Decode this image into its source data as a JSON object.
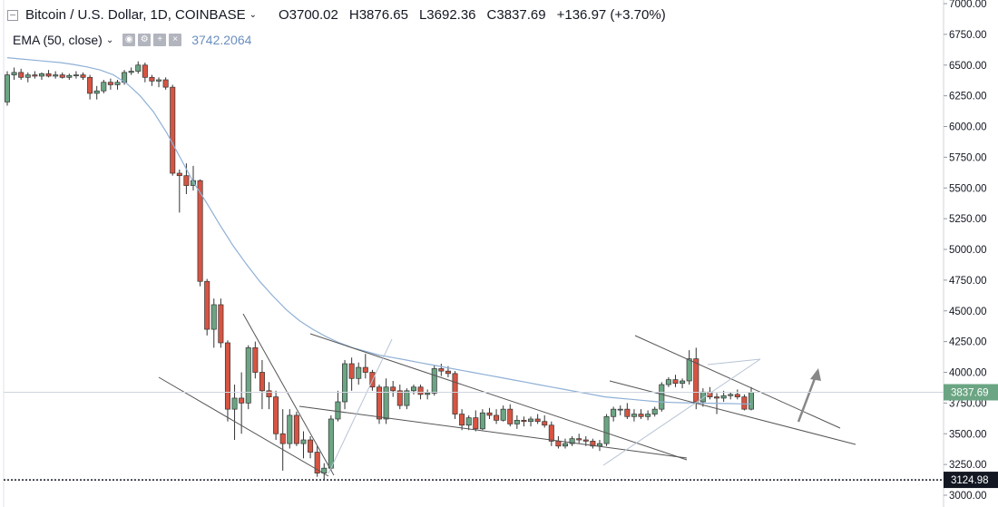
{
  "header": {
    "symbol": "Bitcoin / U.S. Dollar, 1D, COINBASE",
    "open_key": "O",
    "open": "3700.02",
    "high_key": "H",
    "high": "3876.65",
    "low_key": "L",
    "low": "3692.36",
    "close_key": "C",
    "close": "3837.69",
    "change": "+136.97 (+3.70%)"
  },
  "indicator": {
    "name": "EMA (50, close)",
    "value": "3742.2064",
    "icons": [
      "eye-icon",
      "settings-icon",
      "plus-icon",
      "close-icon"
    ]
  },
  "colors": {
    "up": "#6ba583",
    "down": "#d75442",
    "ema": "#8fb0d6",
    "trendline": "#555555",
    "arrow": "#888888",
    "price_label": "#6ba583"
  },
  "chart_data": {
    "type": "candlestick",
    "ylim": [
      3000,
      7000
    ],
    "y_ticks": [
      "7000.00",
      "6750.00",
      "6500.00",
      "6250.00",
      "6000.00",
      "5750.00",
      "5500.00",
      "5250.00",
      "5000.00",
      "4750.00",
      "4500.00",
      "4250.00",
      "4000.00",
      "3750.00",
      "3500.00",
      "3250.00",
      "3000.00"
    ],
    "last_price_label": "3837.69",
    "support_level_label": "3124.98",
    "support_level": 3124.98,
    "last_price": 3837.69,
    "candles": [
      [
        6200,
        6450,
        6170,
        6420
      ],
      [
        6420,
        6480,
        6380,
        6440
      ],
      [
        6440,
        6470,
        6380,
        6400
      ],
      [
        6400,
        6440,
        6360,
        6420
      ],
      [
        6420,
        6450,
        6390,
        6410
      ],
      [
        6410,
        6440,
        6380,
        6430
      ],
      [
        6430,
        6460,
        6400,
        6410
      ],
      [
        6410,
        6450,
        6390,
        6420
      ],
      [
        6420,
        6440,
        6390,
        6400
      ],
      [
        6400,
        6430,
        6380,
        6415
      ],
      [
        6415,
        6450,
        6390,
        6420
      ],
      [
        6420,
        6440,
        6380,
        6400
      ],
      [
        6400,
        6420,
        6220,
        6270
      ],
      [
        6270,
        6330,
        6220,
        6290
      ],
      [
        6290,
        6380,
        6270,
        6360
      ],
      [
        6360,
        6390,
        6300,
        6340
      ],
      [
        6340,
        6380,
        6300,
        6360
      ],
      [
        6360,
        6460,
        6340,
        6440
      ],
      [
        6440,
        6480,
        6420,
        6450
      ],
      [
        6450,
        6530,
        6430,
        6500
      ],
      [
        6500,
        6520,
        6360,
        6400
      ],
      [
        6400,
        6420,
        6330,
        6370
      ],
      [
        6370,
        6400,
        6320,
        6380
      ],
      [
        6380,
        6400,
        6300,
        6320
      ],
      [
        6320,
        6340,
        5600,
        5620
      ],
      [
        5620,
        5650,
        5300,
        5600
      ],
      [
        5600,
        5700,
        5450,
        5520
      ],
      [
        5520,
        5680,
        5480,
        5560
      ],
      [
        5560,
        5570,
        4700,
        4740
      ],
      [
        4740,
        4760,
        4300,
        4350
      ],
      [
        4350,
        4600,
        4200,
        4550
      ],
      [
        4550,
        4600,
        4200,
        4240
      ],
      [
        4240,
        4260,
        3600,
        3700
      ],
      [
        3700,
        3900,
        3450,
        3790
      ],
      [
        3790,
        4000,
        3500,
        3750
      ],
      [
        3750,
        4220,
        3700,
        4200
      ],
      [
        4200,
        4250,
        3950,
        4000
      ],
      [
        4000,
        4100,
        3700,
        3850
      ],
      [
        3850,
        3920,
        3700,
        3800
      ],
      [
        3800,
        3850,
        3450,
        3500
      ],
      [
        3500,
        3700,
        3200,
        3420
      ],
      [
        3420,
        3700,
        3380,
        3650
      ],
      [
        3650,
        3680,
        3400,
        3420
      ],
      [
        3420,
        3520,
        3300,
        3450
      ],
      [
        3450,
        3480,
        3300,
        3350
      ],
      [
        3350,
        3400,
        3150,
        3180
      ],
      [
        3180,
        3260,
        3130,
        3220
      ],
      [
        3220,
        3650,
        3200,
        3620
      ],
      [
        3620,
        3850,
        3600,
        3760
      ],
      [
        3760,
        4100,
        3700,
        4070
      ],
      [
        4070,
        4120,
        3850,
        3950
      ],
      [
        3950,
        4080,
        3900,
        4040
      ],
      [
        4040,
        4150,
        3950,
        4000
      ],
      [
        4000,
        4020,
        3850,
        3880
      ],
      [
        3880,
        3900,
        3580,
        3620
      ],
      [
        3620,
        3950,
        3580,
        3880
      ],
      [
        3880,
        3930,
        3800,
        3850
      ],
      [
        3850,
        3900,
        3700,
        3730
      ],
      [
        3730,
        3870,
        3700,
        3850
      ],
      [
        3850,
        3900,
        3820,
        3880
      ],
      [
        3880,
        3900,
        3780,
        3820
      ],
      [
        3820,
        3860,
        3780,
        3830
      ],
      [
        3830,
        4060,
        3810,
        4030
      ],
      [
        4030,
        4070,
        3970,
        4010
      ],
      [
        4010,
        4050,
        3960,
        3990
      ],
      [
        3990,
        4010,
        3620,
        3660
      ],
      [
        3660,
        3700,
        3530,
        3570
      ],
      [
        3570,
        3650,
        3530,
        3630
      ],
      [
        3630,
        3690,
        3520,
        3540
      ],
      [
        3540,
        3700,
        3530,
        3670
      ],
      [
        3670,
        3710,
        3620,
        3650
      ],
      [
        3650,
        3700,
        3580,
        3610
      ],
      [
        3610,
        3730,
        3600,
        3700
      ],
      [
        3700,
        3740,
        3560,
        3580
      ],
      [
        3580,
        3650,
        3540,
        3610
      ],
      [
        3610,
        3640,
        3560,
        3600
      ],
      [
        3600,
        3640,
        3560,
        3620
      ],
      [
        3620,
        3660,
        3580,
        3600
      ],
      [
        3600,
        3650,
        3550,
        3570
      ],
      [
        3570,
        3600,
        3400,
        3440
      ],
      [
        3440,
        3480,
        3380,
        3400
      ],
      [
        3400,
        3460,
        3380,
        3420
      ],
      [
        3420,
        3480,
        3400,
        3460
      ],
      [
        3460,
        3500,
        3420,
        3450
      ],
      [
        3450,
        3480,
        3400,
        3440
      ],
      [
        3440,
        3460,
        3380,
        3400
      ],
      [
        3400,
        3450,
        3360,
        3420
      ],
      [
        3420,
        3660,
        3400,
        3640
      ],
      [
        3640,
        3720,
        3600,
        3700
      ],
      [
        3700,
        3730,
        3650,
        3700
      ],
      [
        3700,
        3750,
        3620,
        3640
      ],
      [
        3640,
        3700,
        3600,
        3660
      ],
      [
        3660,
        3700,
        3620,
        3640
      ],
      [
        3640,
        3690,
        3610,
        3660
      ],
      [
        3660,
        3720,
        3640,
        3700
      ],
      [
        3700,
        3920,
        3680,
        3900
      ],
      [
        3900,
        3960,
        3880,
        3940
      ],
      [
        3940,
        3980,
        3880,
        3910
      ],
      [
        3910,
        3950,
        3870,
        3930
      ],
      [
        3930,
        4180,
        3900,
        4110
      ],
      [
        4110,
        4200,
        3700,
        3760
      ],
      [
        3760,
        3870,
        3720,
        3840
      ],
      [
        3840,
        3880,
        3780,
        3800
      ],
      [
        3800,
        3830,
        3660,
        3790
      ],
      [
        3790,
        3850,
        3760,
        3810
      ],
      [
        3810,
        3840,
        3780,
        3820
      ],
      [
        3820,
        3860,
        3780,
        3800
      ],
      [
        3800,
        3820,
        3690,
        3700
      ],
      [
        3700,
        3880,
        3690,
        3838
      ]
    ],
    "ema": [
      6560,
      6550,
      6540,
      6530,
      6520,
      6505,
      6485,
      6460,
      6420,
      6350,
      6250,
      6120,
      5950,
      5750,
      5550,
      5380,
      5200,
      5030,
      4880,
      4740,
      4620,
      4510,
      4420,
      4350,
      4290,
      4240,
      4200,
      4170,
      4140,
      4120,
      4100,
      4080,
      4060,
      4040,
      4020,
      4000,
      3980,
      3960,
      3940,
      3920,
      3900,
      3880,
      3860,
      3840,
      3820,
      3800,
      3790,
      3780,
      3770,
      3760,
      3755,
      3752,
      3750,
      3748,
      3746,
      3744,
      3742
    ],
    "trendlines": [
      [
        [
          175,
          416
        ],
        [
          362,
          525
        ]
      ],
      [
        [
          268,
          346
        ],
        [
          368,
          524
        ]
      ],
      [
        [
          342,
          368
        ],
        [
          757,
          507
        ]
      ],
      [
        [
          330,
          448
        ],
        [
          757,
          505
        ]
      ],
      [
        [
          700,
          370
        ],
        [
          926,
          472
        ]
      ],
      [
        [
          672,
          420
        ],
        [
          943,
          490
        ]
      ],
      [
        [
          780,
          402
        ],
        [
          838,
          396
        ]
      ]
    ]
  }
}
